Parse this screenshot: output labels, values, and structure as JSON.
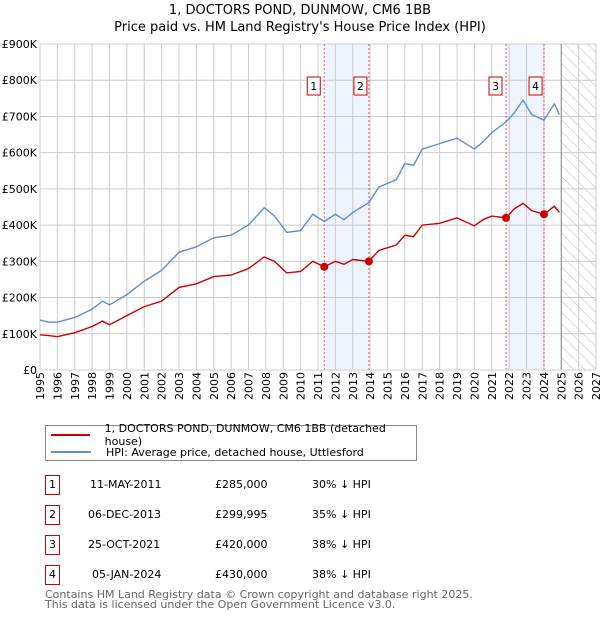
{
  "chart_data": {
    "type": "line",
    "title": "1, DOCTORS POND, DUNMOW, CM6 1BB",
    "subtitle": "Price paid vs. HM Land Registry's House Price Index (HPI)",
    "xlim": [
      1995,
      2027
    ],
    "ylim": [
      0,
      900000
    ],
    "x_ticks": [
      "1995",
      "1996",
      "1997",
      "1998",
      "1999",
      "2000",
      "2001",
      "2002",
      "2003",
      "2004",
      "2005",
      "2006",
      "2007",
      "2008",
      "2009",
      "2010",
      "2011",
      "2012",
      "2013",
      "2014",
      "2015",
      "2016",
      "2017",
      "2018",
      "2019",
      "2020",
      "2021",
      "2022",
      "2023",
      "2024",
      "2025",
      "2026",
      "2027"
    ],
    "y_ticks": [
      {
        "v": 0,
        "label": "£0"
      },
      {
        "v": 100000,
        "label": "£100K"
      },
      {
        "v": 200000,
        "label": "£200K"
      },
      {
        "v": 300000,
        "label": "£300K"
      },
      {
        "v": 400000,
        "label": "£400K"
      },
      {
        "v": 500000,
        "label": "£500K"
      },
      {
        "v": 600000,
        "label": "£600K"
      },
      {
        "v": 700000,
        "label": "£700K"
      },
      {
        "v": 800000,
        "label": "£800K"
      },
      {
        "v": 900000,
        "label": "£900K"
      }
    ],
    "grid": true,
    "forecast_from": 2025,
    "series": [
      {
        "name": "1, DOCTORS POND, DUNMOW, CM6 1BB (detached house)",
        "color": "#cc0000",
        "x": [
          1995,
          1995.5,
          1996,
          1997,
          1998,
          1998.6,
          1999,
          2000,
          2001,
          2002,
          2003,
          2004,
          2005,
          2006,
          2007,
          2007.9,
          2008.5,
          2009.2,
          2010,
          2010.7,
          2011.36,
          2012,
          2012.5,
          2013,
          2013.93,
          2014.5,
          2015.5,
          2016,
          2016.5,
          2017,
          2018,
          2019,
          2020,
          2020.5,
          2021,
          2021.82,
          2022.3,
          2022.8,
          2023.3,
          2024.01,
          2024.6,
          2024.9
        ],
        "y": [
          97000,
          95000,
          92000,
          103000,
          120000,
          135000,
          125000,
          150000,
          175000,
          190000,
          228000,
          238000,
          258000,
          262000,
          280000,
          312000,
          300000,
          268000,
          272000,
          300000,
          285000,
          300000,
          292000,
          305000,
          300000,
          330000,
          345000,
          372000,
          368000,
          400000,
          405000,
          420000,
          398000,
          415000,
          425000,
          420000,
          445000,
          460000,
          440000,
          430000,
          452000,
          435000
        ]
      },
      {
        "name": "HPI: Average price, detached house, Uttlesford",
        "color": "#5b8fd4",
        "x": [
          1995,
          1995.5,
          1996,
          1997,
          1998,
          1998.6,
          1999,
          2000,
          2001,
          2002,
          2003,
          2004,
          2005,
          2006,
          2007,
          2007.9,
          2008.5,
          2009.2,
          2010,
          2010.7,
          2011.36,
          2012,
          2012.5,
          2013,
          2013.93,
          2014.5,
          2015.5,
          2016,
          2016.5,
          2017,
          2018,
          2019,
          2020,
          2020.5,
          2021,
          2021.82,
          2022.3,
          2022.8,
          2023.3,
          2024.01,
          2024.6,
          2024.9
        ],
        "y": [
          138000,
          132000,
          132000,
          145000,
          168000,
          190000,
          180000,
          208000,
          245000,
          275000,
          325000,
          340000,
          365000,
          372000,
          400000,
          448000,
          425000,
          380000,
          385000,
          430000,
          410000,
          430000,
          415000,
          435000,
          462000,
          505000,
          525000,
          570000,
          565000,
          610000,
          625000,
          640000,
          610000,
          630000,
          655000,
          685000,
          710000,
          745000,
          705000,
          690000,
          735000,
          705000
        ]
      }
    ],
    "sales": [
      {
        "n": "1",
        "x": 2011.36,
        "date": "11-MAY-2011",
        "price": 285000,
        "price_label": "£285,000",
        "hpi": "30% ↓ HPI"
      },
      {
        "n": "2",
        "x": 2013.93,
        "date": "06-DEC-2013",
        "price": 299995,
        "price_label": "£299,995",
        "hpi": "35% ↓ HPI"
      },
      {
        "n": "3",
        "x": 2021.82,
        "date": "25-OCT-2021",
        "price": 420000,
        "price_label": "£420,000",
        "hpi": "38% ↓ HPI"
      },
      {
        "n": "4",
        "x": 2024.01,
        "date": "05-JAN-2024",
        "price": 430000,
        "price_label": "£430,000",
        "hpi": "38% ↓ HPI"
      }
    ],
    "shaded_ranges": [
      [
        2011.36,
        2013.93
      ],
      [
        2021.82,
        2024.01
      ]
    ]
  },
  "footer": {
    "line1": "Contains HM Land Registry data © Crown copyright and database right 2025.",
    "line2": "This data is licensed under the Open Government Licence v3.0."
  }
}
